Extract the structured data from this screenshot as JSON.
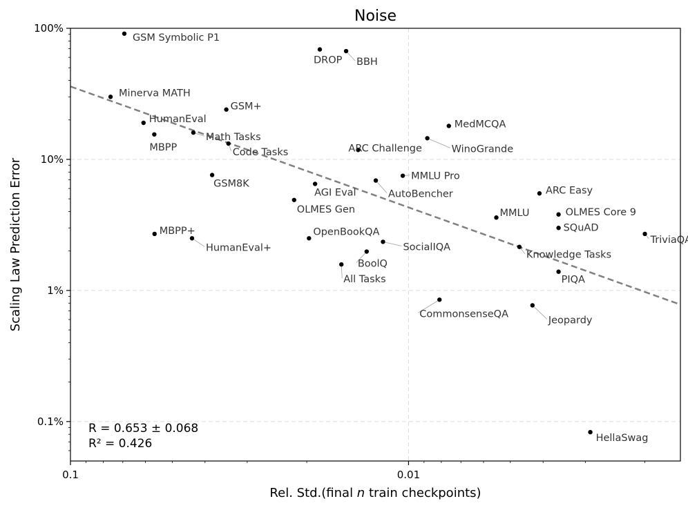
{
  "chart_data": {
    "type": "scatter",
    "title": "Noise",
    "xlabel_parts": [
      "Rel. Std.(final ",
      "n",
      " train checkpoints)"
    ],
    "ylabel": "Scaling Law Prediction Error",
    "x_scale": "log-reversed",
    "y_scale": "log",
    "xlim": [
      0.1,
      0.00157
    ],
    "ylim": [
      0.0005,
      1.0
    ],
    "x_ticks": [
      {
        "value": 0.1,
        "label": "0.1"
      },
      {
        "value": 0.01,
        "label": "0.01"
      }
    ],
    "y_ticks": [
      {
        "value": 0.001,
        "label": "0.1%"
      },
      {
        "value": 0.01,
        "label": "1%"
      },
      {
        "value": 0.1,
        "label": "10%"
      },
      {
        "value": 1.0,
        "label": "100%"
      }
    ],
    "grid": true,
    "stats": [
      "R = 0.653 ± 0.068",
      "R² = 0.426"
    ],
    "trendline": {
      "style": "dashed",
      "color": "#808080",
      "points": [
        [
          0.1,
          0.36
        ],
        [
          0.00157,
          0.0078
        ]
      ]
    },
    "points": [
      {
        "name": "GSM Symbolic P1",
        "x": 0.0693,
        "y": 0.91
      },
      {
        "name": "DROP",
        "x": 0.0183,
        "y": 0.69
      },
      {
        "name": "BBH",
        "x": 0.0153,
        "y": 0.67
      },
      {
        "name": "Minerva MATH",
        "x": 0.0761,
        "y": 0.3
      },
      {
        "name": "GSM+",
        "x": 0.0346,
        "y": 0.24
      },
      {
        "name": "MedMCQA",
        "x": 0.0076,
        "y": 0.18
      },
      {
        "name": "HumanEval",
        "x": 0.0608,
        "y": 0.19
      },
      {
        "name": "MBPP",
        "x": 0.0565,
        "y": 0.155
      },
      {
        "name": "Math Tasks",
        "x": 0.0433,
        "y": 0.16
      },
      {
        "name": "Code Tasks",
        "x": 0.0341,
        "y": 0.132
      },
      {
        "name": "WinoGrande",
        "x": 0.0088,
        "y": 0.145
      },
      {
        "name": "ARC Challenge",
        "x": 0.0141,
        "y": 0.118
      },
      {
        "name": "GSM8K",
        "x": 0.0381,
        "y": 0.076
      },
      {
        "name": "MMLU Pro",
        "x": 0.0104,
        "y": 0.075
      },
      {
        "name": "AutoBencher",
        "x": 0.0125,
        "y": 0.069
      },
      {
        "name": "AGI Eval",
        "x": 0.0189,
        "y": 0.065
      },
      {
        "name": "ARC Easy",
        "x": 0.0041,
        "y": 0.055
      },
      {
        "name": "OLMES Gen",
        "x": 0.0218,
        "y": 0.049
      },
      {
        "name": "OLMES Core 9",
        "x": 0.0036,
        "y": 0.038
      },
      {
        "name": "MMLU",
        "x": 0.0055,
        "y": 0.036
      },
      {
        "name": "SQuAD",
        "x": 0.0036,
        "y": 0.03
      },
      {
        "name": "TriviaQA",
        "x": 0.002,
        "y": 0.027
      },
      {
        "name": "MBPP+",
        "x": 0.0564,
        "y": 0.027
      },
      {
        "name": "OpenBookQA",
        "x": 0.0197,
        "y": 0.025
      },
      {
        "name": "HumanEval+",
        "x": 0.0437,
        "y": 0.025
      },
      {
        "name": "SocialIQA",
        "x": 0.0119,
        "y": 0.0235
      },
      {
        "name": "Knowledge Tasks",
        "x": 0.0047,
        "y": 0.0215
      },
      {
        "name": "BoolQ",
        "x": 0.0133,
        "y": 0.0198
      },
      {
        "name": "All Tasks",
        "x": 0.0158,
        "y": 0.0158
      },
      {
        "name": "PIQA",
        "x": 0.0036,
        "y": 0.0139
      },
      {
        "name": "CommonsenseQA",
        "x": 0.0081,
        "y": 0.0085
      },
      {
        "name": "Jeopardy",
        "x": 0.0043,
        "y": 0.0077
      },
      {
        "name": "HellaSwag",
        "x": 0.0029,
        "y": 0.00083
      }
    ]
  }
}
